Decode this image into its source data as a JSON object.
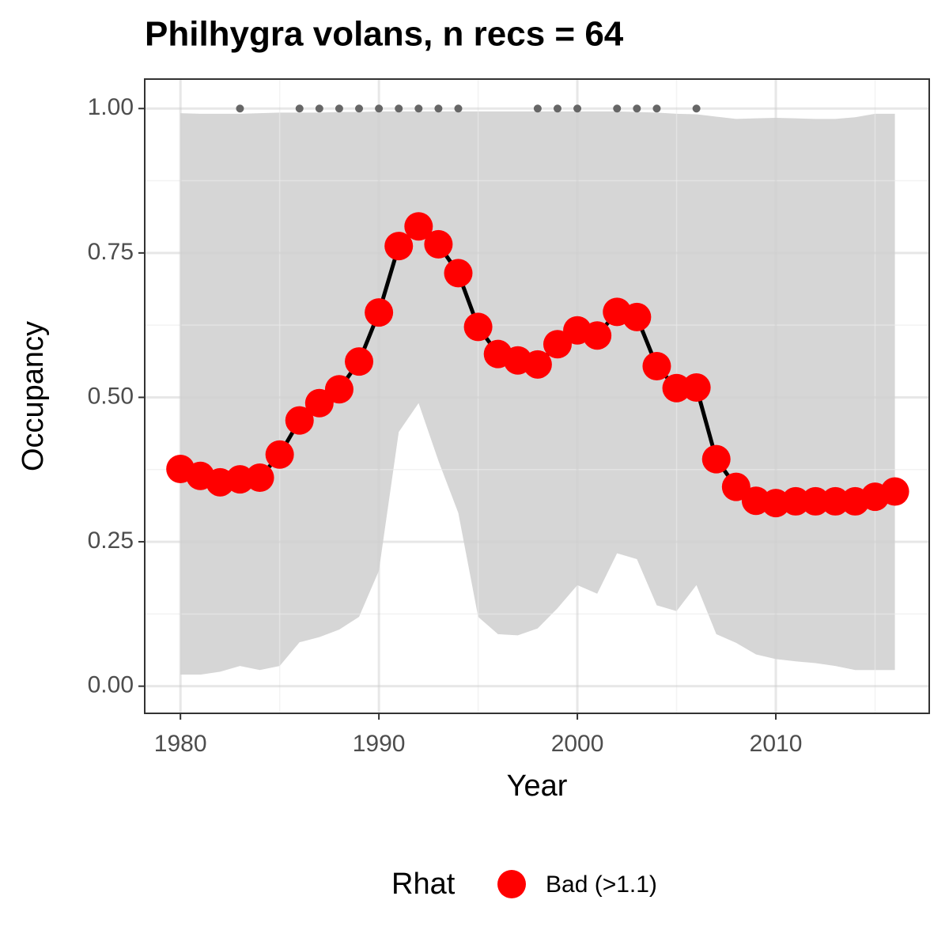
{
  "chart_data": {
    "type": "line",
    "title": "Philhygra volans, n recs = 64",
    "x_label": "Year",
    "y_label": "Occupancy",
    "legend_title": "Rhat",
    "legend_position": "bottom",
    "grid": true,
    "x": [
      1980,
      1981,
      1982,
      1983,
      1984,
      1985,
      1986,
      1987,
      1988,
      1989,
      1990,
      1991,
      1992,
      1993,
      1994,
      1995,
      1996,
      1997,
      1998,
      1999,
      2000,
      2001,
      2002,
      2003,
      2004,
      2005,
      2006,
      2007,
      2008,
      2009,
      2010,
      2011,
      2012,
      2013,
      2014,
      2015,
      2016
    ],
    "series": [
      {
        "name": "Bad (>1.1)",
        "color": "#ff0000",
        "line_color": "#000000",
        "values": [
          0.376,
          0.364,
          0.353,
          0.358,
          0.361,
          0.401,
          0.46,
          0.49,
          0.514,
          0.562,
          0.647,
          0.762,
          0.796,
          0.765,
          0.715,
          0.622,
          0.575,
          0.564,
          0.557,
          0.592,
          0.616,
          0.607,
          0.648,
          0.639,
          0.554,
          0.516,
          0.517,
          0.393,
          0.345,
          0.321,
          0.317,
          0.32,
          0.32,
          0.32,
          0.32,
          0.328,
          0.337
        ]
      }
    ],
    "band": {
      "color": "#d6d6d6",
      "lower": [
        0.02,
        0.02,
        0.025,
        0.035,
        0.028,
        0.035,
        0.076,
        0.085,
        0.098,
        0.12,
        0.2,
        0.44,
        0.49,
        0.39,
        0.3,
        0.12,
        0.09,
        0.088,
        0.1,
        0.135,
        0.175,
        0.16,
        0.23,
        0.22,
        0.14,
        0.13,
        0.175,
        0.09,
        0.075,
        0.055,
        0.047,
        0.043,
        0.04,
        0.035,
        0.028,
        0.028,
        0.028
      ],
      "upper": [
        0.992,
        0.991,
        0.991,
        0.991,
        0.992,
        0.993,
        0.993,
        0.993,
        0.994,
        0.994,
        0.995,
        0.995,
        0.995,
        0.995,
        0.995,
        0.995,
        0.995,
        0.995,
        0.995,
        0.995,
        0.995,
        0.995,
        0.995,
        0.994,
        0.993,
        0.991,
        0.99,
        0.986,
        0.982,
        0.983,
        0.984,
        0.983,
        0.982,
        0.982,
        0.985,
        0.991,
        0.991
      ]
    },
    "records": {
      "color": "#666666",
      "x": [
        1983,
        1986,
        1987,
        1988,
        1989,
        1990,
        1991,
        1992,
        1993,
        1994,
        1998,
        1999,
        2000,
        2002,
        2003,
        2004,
        2006
      ],
      "values": [
        1,
        1,
        1,
        1,
        1,
        1,
        1,
        1,
        1,
        1,
        1,
        1,
        1,
        1,
        1,
        1,
        1
      ]
    },
    "xlim": [
      1978.2,
      2017.73
    ],
    "ylim": [
      -0.047,
      1.051
    ],
    "xticks": [
      1980,
      1990,
      2000,
      2010
    ],
    "yticks": [
      {
        "value": 0,
        "label": "0.00"
      },
      {
        "value": 0.25,
        "label": "0.25"
      },
      {
        "value": 0.5,
        "label": "0.50"
      },
      {
        "value": 0.75,
        "label": "0.75"
      },
      {
        "value": 1,
        "label": "1.00"
      }
    ]
  }
}
